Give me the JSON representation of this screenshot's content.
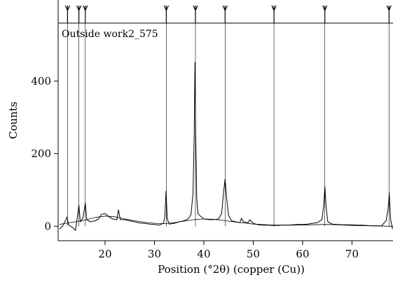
{
  "chart_data": {
    "type": "line",
    "title": "Outside work2_575",
    "xlabel": "Position (°2θ) (copper (Cu))",
    "ylabel": "Counts",
    "xlim": [
      10.5,
      78.3
    ],
    "ylim": [
      -40,
      560
    ],
    "x_ticks": [
      20,
      30,
      40,
      50,
      60,
      70
    ],
    "y_ticks": [
      0,
      200,
      400
    ],
    "grid": false,
    "reference_markers": [
      12.4,
      14.7,
      16.0,
      32.4,
      38.3,
      44.3,
      54.2,
      64.5,
      77.5
    ],
    "series": [
      {
        "values": {
          "x": [
            10.8,
            11.5,
            12.3,
            12.6,
            13.0,
            13.6,
            14.0,
            14.3,
            14.7,
            15.0,
            15.5,
            16.0,
            16.3,
            17.0,
            18.0,
            18.7,
            19.2,
            20.0,
            20.6,
            21.5,
            22.4,
            22.7,
            23.1,
            24.0,
            25.0,
            26.0,
            27.0,
            28.0,
            29.0,
            30.0,
            31.0,
            31.8,
            32.1,
            32.35,
            32.6,
            33.0,
            34.0,
            35.0,
            36.0,
            36.8,
            37.4,
            37.8,
            38.05,
            38.2,
            38.35,
            38.55,
            38.8,
            39.3,
            40.0,
            41.0,
            42.0,
            43.0,
            43.6,
            44.0,
            44.3,
            44.6,
            45.0,
            45.6,
            46.5,
            47.3,
            47.6,
            48.0,
            49.0,
            49.3,
            50.0,
            51.0,
            52.0,
            53.0,
            54.0,
            55.0,
            56.0,
            57.0,
            58.0,
            59.0,
            60.0,
            61.0,
            62.0,
            63.0,
            63.9,
            64.3,
            64.5,
            64.75,
            65.1,
            66.0,
            67.0,
            68.0,
            69.0,
            70.0,
            71.0,
            72.0,
            73.0,
            74.0,
            75.0,
            76.0,
            76.9,
            77.3,
            77.55,
            77.8,
            78.2
          ],
          "y": [
            -8,
            2,
            25,
            5,
            0,
            -5,
            -12,
            18,
            58,
            12,
            22,
            64,
            18,
            12,
            15,
            20,
            32,
            35,
            28,
            20,
            18,
            45,
            18,
            18,
            15,
            12,
            9,
            8,
            6,
            5,
            3,
            8,
            25,
            97,
            20,
            6,
            8,
            12,
            15,
            20,
            32,
            90,
            250,
            452,
            260,
            80,
            35,
            28,
            20,
            18,
            18,
            20,
            35,
            95,
            130,
            80,
            30,
            15,
            12,
            10,
            22,
            12,
            10,
            18,
            8,
            4,
            3,
            3,
            2,
            2,
            3,
            3,
            4,
            5,
            5,
            6,
            8,
            10,
            18,
            60,
            110,
            55,
            12,
            6,
            5,
            4,
            4,
            4,
            3,
            3,
            2,
            1,
            1,
            1,
            15,
            45,
            92,
            20,
            -8
          ]
        }
      },
      {
        "values": {
          "x": [
            10.8,
            12.0,
            14.0,
            16.0,
            18.0,
            20.0,
            22.0,
            24.0,
            26.0,
            28.0,
            30.0,
            32.0,
            34.0,
            36.0,
            38.0,
            40.0,
            42.0,
            44.0,
            46.0,
            48.0,
            50.0,
            54.0,
            58.0,
            62.0,
            64.5,
            67.0,
            70.0,
            74.0,
            77.5,
            78.3
          ],
          "y": [
            5,
            8,
            12,
            17,
            24,
            28,
            26,
            20,
            15,
            11,
            8,
            7,
            10,
            14,
            18,
            20,
            19,
            16,
            12,
            9,
            6,
            3,
            3,
            4,
            5,
            4,
            2,
            1,
            0,
            0
          ]
        }
      }
    ]
  }
}
